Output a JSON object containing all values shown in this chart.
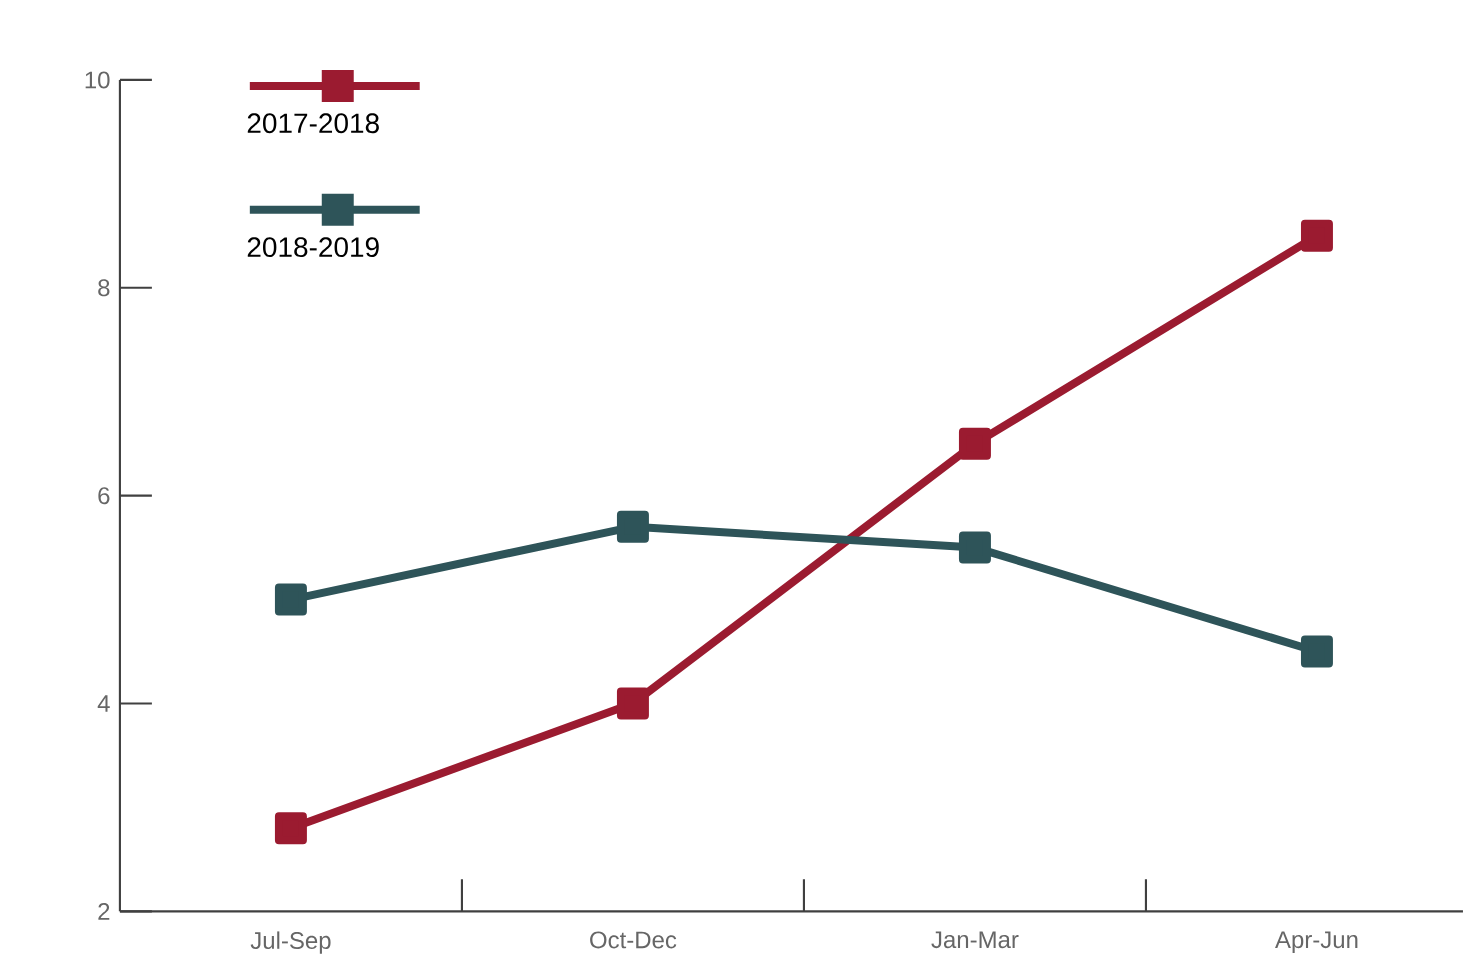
{
  "chart_data": {
    "type": "line",
    "categories": [
      "Jul-Sep",
      "Oct-Dec",
      "Jan-Mar",
      "Apr-Jun"
    ],
    "series": [
      {
        "name": "2017-2018",
        "color": "#9b1b30",
        "values": [
          2.8,
          4,
          6.5,
          8.5
        ]
      },
      {
        "name": "2018-2019",
        "color": "#2e5459",
        "values": [
          5,
          5.7,
          5.5,
          4.5
        ]
      }
    ],
    "ylim": [
      2,
      10
    ],
    "yticks": [
      2,
      4,
      6,
      8,
      10
    ],
    "grid": false,
    "legend": "top left",
    "marker": "square",
    "line_style": "solid"
  }
}
